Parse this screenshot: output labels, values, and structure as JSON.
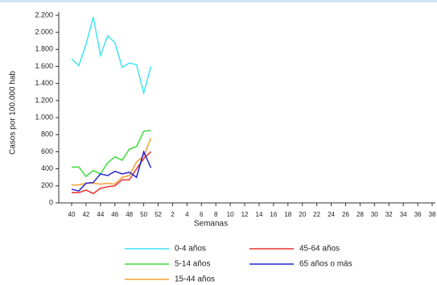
{
  "chart_data": {
    "type": "line",
    "y_label": "Casos por 100.000 hab",
    "x_label": "Semanas",
    "categories": [
      "40",
      null,
      "42",
      null,
      "44",
      null,
      "46",
      null,
      "48",
      null,
      "50",
      null,
      "52",
      null,
      "2",
      null,
      "4",
      null,
      "6",
      null,
      "8",
      null,
      "10",
      null,
      "12",
      null,
      "14",
      null,
      "16",
      null,
      "18",
      null,
      "20",
      null,
      "22",
      null,
      "24",
      null,
      "26",
      null,
      "28",
      null,
      "30",
      null,
      "32",
      null,
      "34",
      null,
      "36",
      null,
      "38"
    ],
    "series": [
      {
        "name": "0-4 años",
        "color": "#3ee6f2",
        "values": [
          1690,
          1610,
          1860,
          2180,
          1730,
          1960,
          1880,
          1590,
          1640,
          1620,
          1290,
          1600,
          null,
          null,
          null,
          null,
          null,
          null,
          null,
          null,
          null,
          null,
          null,
          null,
          null,
          null,
          null,
          null,
          null,
          null,
          null,
          null,
          null,
          null,
          null,
          null,
          null,
          null,
          null,
          null,
          null,
          null,
          null,
          null,
          null,
          null,
          null,
          null,
          null,
          null,
          null
        ]
      },
      {
        "name": "5-14 años",
        "color": "#3ddc3a",
        "values": [
          420,
          420,
          310,
          380,
          340,
          470,
          540,
          500,
          630,
          660,
          840,
          850,
          null,
          null,
          null,
          null,
          null,
          null,
          null,
          null,
          null,
          null,
          null,
          null,
          null,
          null,
          null,
          null,
          null,
          null,
          null,
          null,
          null,
          null,
          null,
          null,
          null,
          null,
          null,
          null,
          null,
          null,
          null,
          null,
          null,
          null,
          null,
          null,
          null,
          null,
          null
        ]
      },
      {
        "name": "15-44 años",
        "color": "#f5a033",
        "values": [
          210,
          210,
          230,
          230,
          220,
          230,
          220,
          300,
          320,
          480,
          550,
          760,
          null,
          null,
          null,
          null,
          null,
          null,
          null,
          null,
          null,
          null,
          null,
          null,
          null,
          null,
          null,
          null,
          null,
          null,
          null,
          null,
          null,
          null,
          null,
          null,
          null,
          null,
          null,
          null,
          null,
          null,
          null,
          null,
          null,
          null,
          null,
          null,
          null,
          null,
          null
        ]
      },
      {
        "name": "45-64 años",
        "color": "#e63232",
        "values": [
          120,
          120,
          150,
          110,
          170,
          190,
          200,
          270,
          270,
          400,
          520,
          600,
          null,
          null,
          null,
          null,
          null,
          null,
          null,
          null,
          null,
          null,
          null,
          null,
          null,
          null,
          null,
          null,
          null,
          null,
          null,
          null,
          null,
          null,
          null,
          null,
          null,
          null,
          null,
          null,
          null,
          null,
          null,
          null,
          null,
          null,
          null,
          null,
          null,
          null,
          null
        ]
      },
      {
        "name": "65 años o más",
        "color": "#2424d0",
        "values": [
          160,
          140,
          230,
          240,
          340,
          320,
          370,
          340,
          360,
          300,
          600,
          410,
          null,
          null,
          null,
          null,
          null,
          null,
          null,
          null,
          null,
          null,
          null,
          null,
          null,
          null,
          null,
          null,
          null,
          null,
          null,
          null,
          null,
          null,
          null,
          null,
          null,
          null,
          null,
          null,
          null,
          null,
          null,
          null,
          null,
          null,
          null,
          null,
          null,
          null,
          null
        ]
      }
    ],
    "ylim": [
      0,
      2200
    ],
    "yticks": [
      0,
      200,
      400,
      600,
      800,
      {
        "value": 1000,
        "label": "1.000"
      },
      {
        "value": 1200,
        "label": "1.200"
      },
      {
        "value": 1400,
        "label": "1.400"
      },
      {
        "value": 1600,
        "label": "1.600"
      },
      {
        "value": 1800,
        "label": "1.800"
      },
      {
        "value": 2000,
        "label": "2.000"
      },
      {
        "value": 2200,
        "label": "2.200"
      }
    ]
  }
}
